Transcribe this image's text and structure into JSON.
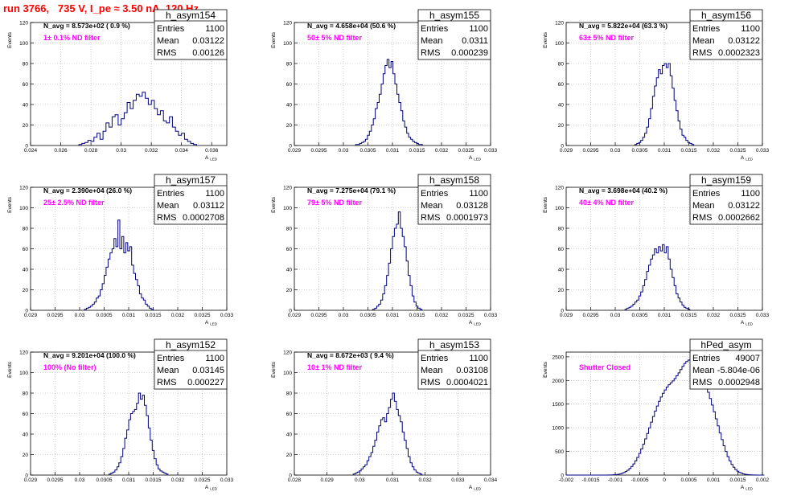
{
  "page_title": "run 3766,   735 V, I_pe ≈ 3.50 nA, 120 Hz",
  "colors": {
    "line": "#000080",
    "title": "#ff0000",
    "filter_label": "#ff00ff",
    "grid": "#aaaaaa"
  },
  "common": {
    "xlabel": "A",
    "xlabel_sub": "LED",
    "ylabel": "Events"
  },
  "chart_data": [
    {
      "type": "histogram",
      "name": "h_asym154",
      "stats": {
        "entries_label": "Entries",
        "entries": "1100",
        "mean_label": "Mean",
        "mean": "0.03122",
        "rms_label": "RMS",
        "rms": "0.00126"
      },
      "n_avg": "N_avg = 8.573e+02 ( 0.9 %)",
      "filter": "1± 0.1% ND filter",
      "xlim": [
        0.024,
        0.037
      ],
      "ylim": [
        0,
        120
      ],
      "xticks": [
        "0.024",
        "0.026",
        "0.028",
        "0.03",
        "0.032",
        "0.034",
        "0.036"
      ],
      "xtick_values": [
        0.024,
        0.026,
        0.028,
        0.03,
        0.032,
        0.034,
        0.036
      ],
      "yticks": [
        "0",
        "20",
        "40",
        "60",
        "80",
        "100",
        "120"
      ],
      "ytick_values": [
        0,
        20,
        40,
        60,
        80,
        100,
        120
      ],
      "bins": {
        "start": 0.0272,
        "width": 0.0002,
        "counts": [
          1,
          2,
          3,
          5,
          4,
          8,
          12,
          6,
          14,
          22,
          18,
          28,
          30,
          20,
          26,
          32,
          42,
          36,
          44,
          50,
          48,
          52,
          46,
          40,
          44,
          36,
          30,
          34,
          24,
          22,
          28,
          18,
          14,
          10,
          12,
          6,
          4,
          2,
          1
        ]
      }
    },
    {
      "type": "histogram",
      "name": "h_asym155",
      "stats": {
        "entries_label": "Entries",
        "entries": "1100",
        "mean_label": "Mean",
        "mean": "0.0311",
        "rms_label": "RMS",
        "rms": "0.000239"
      },
      "n_avg": "N_avg = 4.658e+04 (50.6 %)",
      "filter": "50± 5% ND filter",
      "xlim": [
        0.029,
        0.033
      ],
      "ylim": [
        0,
        120
      ],
      "xticks": [
        "0.029",
        "0.0295",
        "0.03",
        "0.0305",
        "0.031",
        "0.0315",
        "0.032",
        "0.0325",
        "0.033"
      ],
      "xtick_values": [
        0.029,
        0.0295,
        0.03,
        0.0305,
        0.031,
        0.0315,
        0.032,
        0.0325,
        0.033
      ],
      "yticks": [
        "0",
        "20",
        "40",
        "60",
        "80",
        "100",
        "120"
      ],
      "ytick_values": [
        0,
        20,
        40,
        60,
        80,
        100,
        120
      ],
      "bins": {
        "start": 0.03025,
        "width": 4e-05,
        "counts": [
          1,
          1,
          2,
          3,
          4,
          6,
          10,
          14,
          20,
          26,
          36,
          42,
          50,
          60,
          70,
          78,
          84,
          76,
          82,
          70,
          60,
          50,
          42,
          34,
          24,
          18,
          12,
          8,
          6,
          4,
          3,
          2,
          1,
          1
        ]
      }
    },
    {
      "type": "histogram",
      "name": "h_asym156",
      "stats": {
        "entries_label": "Entries",
        "entries": "1100",
        "mean_label": "Mean",
        "mean": "0.03122",
        "rms_label": "RMS",
        "rms": "0.0002323"
      },
      "n_avg": "N_avg = 5.822e+04 (63.3 %)",
      "filter": "63± 5% ND filter",
      "xlim": [
        0.029,
        0.033
      ],
      "ylim": [
        0,
        120
      ],
      "xticks": [
        "0.029",
        "0.0295",
        "0.03",
        "0.0305",
        "0.031",
        "0.0315",
        "0.032",
        "0.0325",
        "0.033"
      ],
      "xtick_values": [
        0.029,
        0.0295,
        0.03,
        0.0305,
        0.031,
        0.0315,
        0.032,
        0.0325,
        0.033
      ],
      "yticks": [
        "0",
        "20",
        "40",
        "60",
        "80",
        "100",
        "120"
      ],
      "ytick_values": [
        0,
        20,
        40,
        60,
        80,
        100,
        120
      ],
      "bins": {
        "start": 0.0304,
        "width": 4e-05,
        "counts": [
          1,
          2,
          3,
          5,
          8,
          12,
          18,
          26,
          36,
          48,
          58,
          66,
          74,
          70,
          78,
          80,
          76,
          80,
          68,
          56,
          44,
          34,
          24,
          16,
          10,
          8,
          5,
          3,
          2,
          1
        ]
      }
    },
    {
      "type": "histogram",
      "name": "h_asym157",
      "stats": {
        "entries_label": "Entries",
        "entries": "1100",
        "mean_label": "Mean",
        "mean": "0.03112",
        "rms_label": "RMS",
        "rms": "0.0002708"
      },
      "n_avg": "N_avg = 2.390e+04 (26.0 %)",
      "filter": "25± 2.5% ND filter",
      "xlim": [
        0.029,
        0.033
      ],
      "ylim": [
        0,
        120
      ],
      "xticks": [
        "0.029",
        "0.0295",
        "0.03",
        "0.0305",
        "0.031",
        "0.0315",
        "0.032",
        "0.0325",
        "0.033"
      ],
      "xtick_values": [
        0.029,
        0.0295,
        0.03,
        0.0305,
        0.031,
        0.0315,
        0.032,
        0.0325,
        0.033
      ],
      "yticks": [
        "0",
        "20",
        "40",
        "60",
        "80",
        "100",
        "120"
      ],
      "ytick_values": [
        0,
        20,
        40,
        60,
        80,
        100,
        120
      ],
      "bins": {
        "start": 0.0301,
        "width": 4e-05,
        "counts": [
          1,
          2,
          3,
          4,
          6,
          8,
          12,
          14,
          20,
          26,
          34,
          42,
          50,
          56,
          60,
          70,
          62,
          88,
          60,
          72,
          56,
          66,
          58,
          62,
          44,
          36,
          30,
          24,
          16,
          12,
          10,
          6,
          4,
          2,
          1
        ]
      }
    },
    {
      "type": "histogram",
      "name": "h_asym158",
      "stats": {
        "entries_label": "Entries",
        "entries": "1100",
        "mean_label": "Mean",
        "mean": "0.03128",
        "rms_label": "RMS",
        "rms": "0.0001973"
      },
      "n_avg": "N_avg = 7.275e+04 (79.1 %)",
      "filter": "79± 5% ND filter",
      "xlim": [
        0.029,
        0.033
      ],
      "ylim": [
        0,
        120
      ],
      "xticks": [
        "0.029",
        "0.0295",
        "0.03",
        "0.0305",
        "0.031",
        "0.0315",
        "0.032",
        "0.0325",
        "0.033"
      ],
      "xtick_values": [
        0.029,
        0.0295,
        0.03,
        0.0305,
        0.031,
        0.0315,
        0.032,
        0.0325,
        0.033
      ],
      "yticks": [
        "0",
        "20",
        "40",
        "60",
        "80",
        "100",
        "120"
      ],
      "ytick_values": [
        0,
        20,
        40,
        60,
        80,
        100,
        120
      ],
      "bins": {
        "start": 0.0306,
        "width": 4e-05,
        "counts": [
          1,
          2,
          4,
          6,
          10,
          16,
          24,
          34,
          46,
          60,
          72,
          80,
          84,
          96,
          80,
          72,
          62,
          48,
          34,
          24,
          14,
          8,
          4,
          2,
          1
        ]
      }
    },
    {
      "type": "histogram",
      "name": "h_asym159",
      "stats": {
        "entries_label": "Entries",
        "entries": "1100",
        "mean_label": "Mean",
        "mean": "0.03122",
        "rms_label": "RMS",
        "rms": "0.0002662"
      },
      "n_avg": "N_avg = 3.698e+04 (40.2 %)",
      "filter": "40± 4% ND filter",
      "xlim": [
        0.029,
        0.033
      ],
      "ylim": [
        0,
        120
      ],
      "xticks": [
        "0.029",
        "0.0295",
        "0.03",
        "0.0305",
        "0.031",
        "0.0315",
        "0.032",
        "0.0325",
        "0.033"
      ],
      "xtick_values": [
        0.029,
        0.0295,
        0.03,
        0.0305,
        0.031,
        0.0315,
        0.032,
        0.0325,
        0.033
      ],
      "yticks": [
        "0",
        "20",
        "40",
        "60",
        "80",
        "100",
        "120"
      ],
      "ytick_values": [
        0,
        20,
        40,
        60,
        80,
        100,
        120
      ],
      "bins": {
        "start": 0.0302,
        "width": 4e-05,
        "counts": [
          1,
          2,
          3,
          4,
          6,
          8,
          10,
          14,
          18,
          24,
          30,
          38,
          44,
          50,
          54,
          60,
          56,
          62,
          58,
          64,
          56,
          62,
          50,
          40,
          32,
          24,
          16,
          12,
          8,
          5,
          3,
          2,
          1
        ]
      }
    },
    {
      "type": "histogram",
      "name": "h_asym152",
      "stats": {
        "entries_label": "Entries",
        "entries": "1100",
        "mean_label": "Mean",
        "mean": "0.03145",
        "rms_label": "RMS",
        "rms": "0.000227"
      },
      "n_avg": "N_avg = 9.201e+04 (100.0 %)",
      "filter": "100% (No filter)",
      "xlim": [
        0.029,
        0.033
      ],
      "ylim": [
        0,
        120
      ],
      "xticks": [
        "0.029",
        "0.0295",
        "0.03",
        "0.0305",
        "0.031",
        "0.0315",
        "0.032",
        "0.0325",
        "0.033"
      ],
      "xtick_values": [
        0.029,
        0.0295,
        0.03,
        0.0305,
        0.031,
        0.0315,
        0.032,
        0.0325,
        0.033
      ],
      "yticks": [
        "0",
        "20",
        "40",
        "60",
        "80",
        "100",
        "120"
      ],
      "ytick_values": [
        0,
        20,
        40,
        60,
        80,
        100,
        120
      ],
      "bins": {
        "start": 0.0306,
        "width": 4e-05,
        "counts": [
          1,
          2,
          3,
          5,
          8,
          12,
          18,
          26,
          36,
          44,
          54,
          60,
          62,
          64,
          70,
          80,
          74,
          78,
          68,
          58,
          46,
          34,
          24,
          16,
          10,
          6,
          4,
          3,
          2,
          1
        ]
      }
    },
    {
      "type": "histogram",
      "name": "h_asym153",
      "stats": {
        "entries_label": "Entries",
        "entries": "1100",
        "mean_label": "Mean",
        "mean": "0.03108",
        "rms_label": "RMS",
        "rms": "0.0004021"
      },
      "n_avg": "N_avg = 8.672e+03 ( 9.4 %)",
      "filter": "10± 1% ND filter",
      "xlim": [
        0.028,
        0.034
      ],
      "ylim": [
        0,
        120
      ],
      "xticks": [
        "0.028",
        "0.029",
        "0.03",
        "0.031",
        "0.032",
        "0.033",
        "0.034"
      ],
      "xtick_values": [
        0.028,
        0.029,
        0.03,
        0.031,
        0.032,
        0.033,
        0.034
      ],
      "yticks": [
        "0",
        "20",
        "40",
        "60",
        "80",
        "100",
        "120"
      ],
      "ytick_values": [
        0,
        20,
        40,
        60,
        80,
        100,
        120
      ],
      "bins": {
        "start": 0.0298,
        "width": 6e-05,
        "counts": [
          1,
          2,
          3,
          4,
          6,
          8,
          10,
          14,
          18,
          22,
          28,
          34,
          42,
          48,
          54,
          56,
          52,
          60,
          66,
          74,
          80,
          72,
          64,
          58,
          52,
          42,
          34,
          26,
          18,
          12,
          8,
          5,
          3,
          2,
          1
        ]
      }
    },
    {
      "type": "histogram",
      "name": "hPed_asym",
      "stats": {
        "entries_label": "Entries",
        "entries": "49007",
        "mean_label": "Mean",
        "mean": "-5.804e-06",
        "rms_label": "RMS",
        "rms": "0.0002948"
      },
      "n_avg": "",
      "filter": "Shutter Closed",
      "xlim": [
        -0.002,
        0.002
      ],
      "ylim": [
        0,
        2600
      ],
      "xticks": [
        "-0.002",
        "-0.0015",
        "-0.001",
        "-0.0005",
        "0",
        "0.0005",
        "0.001",
        "0.0015",
        "0.002"
      ],
      "xtick_values": [
        -0.002,
        -0.0015,
        -0.001,
        -0.0005,
        0,
        0.0005,
        0.001,
        0.0015,
        0.002
      ],
      "yticks": [
        "0",
        "500",
        "1000",
        "1500",
        "2000",
        "2500"
      ],
      "ytick_values": [
        0,
        500,
        1000,
        1500,
        2000,
        2500
      ],
      "bins": {
        "start": -0.002,
        "width": 4e-05,
        "counts": [
          0,
          0,
          0,
          0,
          0,
          0,
          0,
          0,
          0,
          0,
          0,
          0,
          0,
          0,
          0,
          0,
          0,
          0,
          0,
          0,
          0,
          1,
          2,
          4,
          6,
          10,
          16,
          24,
          36,
          52,
          74,
          102,
          138,
          182,
          236,
          300,
          374,
          458,
          552,
          654,
          764,
          880,
          1000,
          1120,
          1238,
          1352,
          1460,
          1560,
          1650,
          1730,
          1800,
          1860,
          1910,
          1950,
          1990,
          2040,
          2100,
          2160,
          2230,
          2300,
          2360,
          2400,
          2430,
          2440,
          2420,
          2380,
          2320,
          2250,
          2170,
          2080,
          1980,
          1870,
          1750,
          1620,
          1480,
          1340,
          1190,
          1040,
          890,
          750,
          620,
          500,
          390,
          300,
          224,
          164,
          118,
          82,
          56,
          38,
          25,
          16,
          10,
          6,
          4,
          2,
          1,
          0,
          0,
          0,
          0
        ]
      }
    }
  ]
}
